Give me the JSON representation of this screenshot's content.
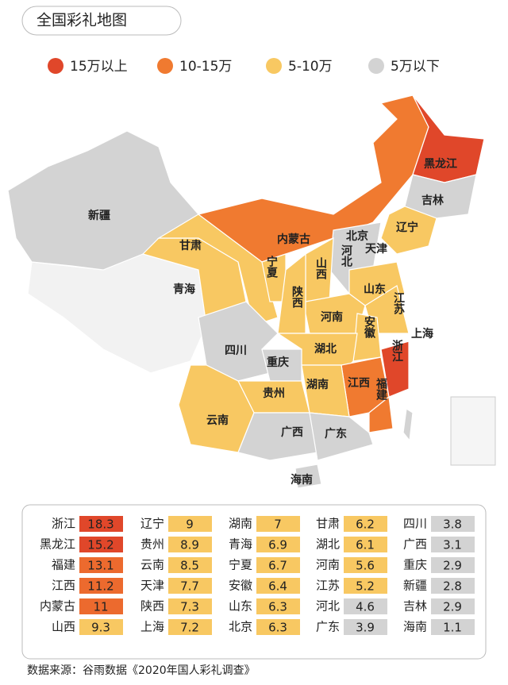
{
  "header": {
    "title": "全国彩礼地图"
  },
  "legend": [
    {
      "label": "15万以上",
      "color": "#e0472a"
    },
    {
      "label": "10-15万",
      "color": "#f07a30"
    },
    {
      "label": "5-10万",
      "color": "#f8c862"
    },
    {
      "label": "5万以下",
      "color": "#d3d3d3"
    }
  ],
  "map": {
    "labels": [
      "新疆",
      "甘肃",
      "内蒙古",
      "黑龙江",
      "吉林",
      "辽宁",
      "北京",
      "天津",
      "河北",
      "宁夏",
      "山西",
      "青海",
      "山东",
      "陕西",
      "河南",
      "江苏",
      "上海",
      "安徽",
      "四川",
      "湖北",
      "浙江",
      "重庆",
      "江西",
      "湖南",
      "贵州",
      "福建",
      "云南",
      "广西",
      "广东",
      "海南"
    ]
  },
  "table": {
    "rows": [
      [
        {
          "name": "浙江",
          "value": 18.3,
          "color": "#e0472a"
        },
        {
          "name": "辽宁",
          "value": 9,
          "color": "#f8c862"
        },
        {
          "name": "湖南",
          "value": 7,
          "color": "#f8c862"
        },
        {
          "name": "甘肃",
          "value": 6.2,
          "color": "#f8c862"
        },
        {
          "name": "四川",
          "value": 3.8,
          "color": "#d3d3d3"
        }
      ],
      [
        {
          "name": "黑龙江",
          "value": 15.2,
          "color": "#e0472a"
        },
        {
          "name": "贵州",
          "value": 8.9,
          "color": "#f8c862"
        },
        {
          "name": "青海",
          "value": 6.9,
          "color": "#f8c862"
        },
        {
          "name": "湖北",
          "value": 6.1,
          "color": "#f8c862"
        },
        {
          "name": "广西",
          "value": 3.1,
          "color": "#d3d3d3"
        }
      ],
      [
        {
          "name": "福建",
          "value": 13.1,
          "color": "#ec6a2e"
        },
        {
          "name": "云南",
          "value": 8.5,
          "color": "#f8c862"
        },
        {
          "name": "宁夏",
          "value": 6.7,
          "color": "#f8c862"
        },
        {
          "name": "河南",
          "value": 5.6,
          "color": "#f8c862"
        },
        {
          "name": "重庆",
          "value": 2.9,
          "color": "#d3d3d3"
        }
      ],
      [
        {
          "name": "江西",
          "value": 11.2,
          "color": "#ec6a2e"
        },
        {
          "name": "天津",
          "value": 7.7,
          "color": "#f8c862"
        },
        {
          "name": "安徽",
          "value": 6.4,
          "color": "#f8c862"
        },
        {
          "name": "江苏",
          "value": 5.2,
          "color": "#f8c862"
        },
        {
          "name": "新疆",
          "value": 2.8,
          "color": "#d3d3d3"
        }
      ],
      [
        {
          "name": "内蒙古",
          "value": 11,
          "color": "#ec6a2e"
        },
        {
          "name": "陕西",
          "value": 7.3,
          "color": "#f8c862"
        },
        {
          "name": "山东",
          "value": 6.3,
          "color": "#f8c862"
        },
        {
          "name": "河北",
          "value": 4.6,
          "color": "#d3d3d3"
        },
        {
          "name": "吉林",
          "value": 2.9,
          "color": "#d3d3d3"
        }
      ],
      [
        {
          "name": "山西",
          "value": 9.3,
          "color": "#f8c862"
        },
        {
          "name": "上海",
          "value": 7.2,
          "color": "#f8c862"
        },
        {
          "name": "北京",
          "value": 6.3,
          "color": "#f8c862"
        },
        {
          "name": "广东",
          "value": 3.9,
          "color": "#d3d3d3"
        },
        {
          "name": "海南",
          "value": 1.1,
          "color": "#d3d3d3"
        }
      ]
    ]
  },
  "footer": {
    "source": "数据来源：谷雨数据《2020年国人彩礼调查》"
  }
}
